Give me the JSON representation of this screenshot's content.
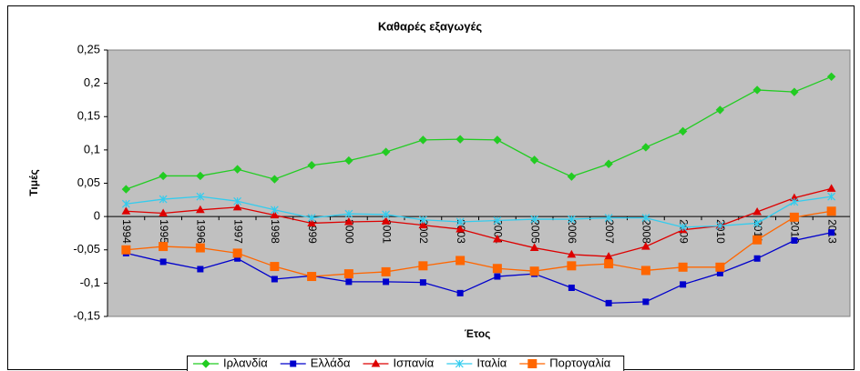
{
  "chart_data": {
    "type": "line",
    "title": "Καθαρές εξαγωγές",
    "x_label": "Έτος",
    "y_label": "Τιμές",
    "categories": [
      "1994",
      "1995",
      "1996",
      "1997",
      "1998",
      "1999",
      "2000",
      "2001",
      "2002",
      "2003",
      "2004",
      "2005",
      "2006",
      "2007",
      "2008",
      "2009",
      "2010",
      "2011",
      "2012",
      "2013"
    ],
    "series": [
      {
        "name": "Ιρλανδία",
        "color": "#22cc22",
        "marker": "diamond",
        "values": [
          0.041,
          0.061,
          0.061,
          0.071,
          0.056,
          0.077,
          0.084,
          0.097,
          0.115,
          0.116,
          0.115,
          0.085,
          0.06,
          0.079,
          0.104,
          0.128,
          0.16,
          0.19,
          0.187,
          0.21
        ]
      },
      {
        "name": "Ελλάδα",
        "color": "#0000cc",
        "marker": "square",
        "values": [
          -0.055,
          -0.068,
          -0.079,
          -0.063,
          -0.094,
          -0.089,
          -0.098,
          -0.098,
          -0.099,
          -0.115,
          -0.09,
          -0.086,
          -0.107,
          -0.13,
          -0.128,
          -0.102,
          -0.085,
          -0.063,
          -0.036,
          -0.024
        ]
      },
      {
        "name": "Ισπανία",
        "color": "#dd0000",
        "marker": "triangle",
        "values": [
          0.008,
          0.005,
          0.01,
          0.014,
          0.002,
          -0.01,
          -0.008,
          -0.007,
          -0.013,
          -0.019,
          -0.034,
          -0.047,
          -0.057,
          -0.06,
          -0.045,
          -0.02,
          -0.014,
          0.007,
          0.028,
          0.042
        ]
      },
      {
        "name": "Ιταλία",
        "color": "#33ccee",
        "marker": "cross",
        "values": [
          0.019,
          0.026,
          0.03,
          0.023,
          0.01,
          -0.002,
          0.004,
          0.003,
          -0.005,
          -0.008,
          -0.006,
          -0.004,
          -0.004,
          -0.002,
          -0.002,
          -0.016,
          -0.014,
          -0.01,
          0.022,
          0.03
        ]
      },
      {
        "name": "Πορτογαλία",
        "color": "#ff6600",
        "marker": "bigsquare",
        "values": [
          -0.05,
          -0.045,
          -0.047,
          -0.055,
          -0.075,
          -0.09,
          -0.086,
          -0.083,
          -0.074,
          -0.066,
          -0.078,
          -0.082,
          -0.074,
          -0.071,
          -0.081,
          -0.076,
          -0.076,
          -0.035,
          -0.001,
          0.008
        ]
      }
    ],
    "ylim": [
      -0.15,
      0.25
    ],
    "yticks": [
      {
        "value": -0.15,
        "label": "-0,15"
      },
      {
        "value": -0.1,
        "label": "-0,1"
      },
      {
        "value": -0.05,
        "label": "-0,05"
      },
      0,
      {
        "value": 0.05,
        "label": "0,05"
      },
      {
        "value": 0.1,
        "label": "0,1"
      },
      {
        "value": 0.15,
        "label": "0,15"
      },
      {
        "value": 0.2,
        "label": "0,2"
      },
      {
        "value": 0.25,
        "label": "0,25"
      }
    ],
    "grid": false,
    "legend": "bottom",
    "plot_background": "#c0c0c0"
  }
}
